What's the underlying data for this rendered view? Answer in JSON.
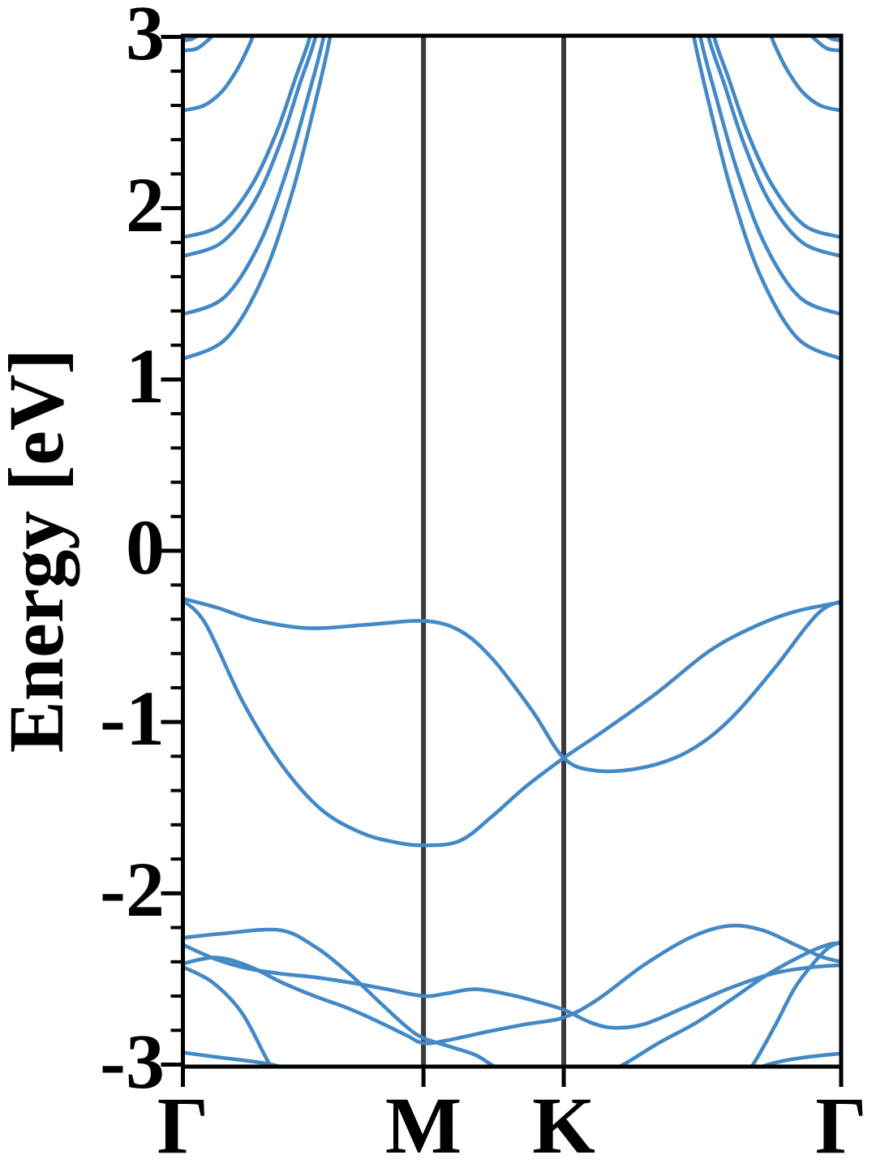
{
  "figure": {
    "ylabel": "Energy [eV]",
    "ytick_labels": [
      {
        "text": "3",
        "energy": 3
      },
      {
        "text": "2",
        "energy": 2
      },
      {
        "text": "1",
        "energy": 1
      },
      {
        "text": "0",
        "energy": 0
      },
      {
        "text": "-1",
        "energy": -1
      },
      {
        "text": "-2",
        "energy": -2
      },
      {
        "text": "-3",
        "energy": -3
      }
    ],
    "xtick_labels": [
      {
        "text": "Γ",
        "k": 0.0
      },
      {
        "text": "M",
        "k": 0.3655
      },
      {
        "text": "K",
        "k": 0.5786
      },
      {
        "text": "Γ",
        "k": 1.0
      }
    ]
  },
  "chart_data": {
    "type": "line",
    "kind": "electronic-band-structure",
    "title": "",
    "xlabel": "",
    "ylabel": "Energy [eV]",
    "ylim": [
      -3,
      3
    ],
    "ytick_major": [
      3,
      2,
      1,
      0,
      -1,
      -2,
      -3
    ],
    "ytick_minor_step": 0.2,
    "grid": false,
    "legend": "none",
    "high_symmetry_points": [
      {
        "label": "Γ",
        "k": 0.0
      },
      {
        "label": "M",
        "k": 0.3655
      },
      {
        "label": "K",
        "k": 0.5786
      },
      {
        "label": "Γ",
        "k": 1.0
      }
    ],
    "separators_k": [
      0.3655,
      0.5786
    ],
    "band_color": "#4389c6",
    "separator_color": "#3a3a3a",
    "axis_color": "#000000",
    "series": [
      {
        "name": "valence-1",
        "mirror": false,
        "points": [
          [
            0,
            -0.28
          ],
          [
            0.05,
            -0.33
          ],
          [
            0.11,
            -0.405
          ],
          [
            0.19,
            -0.452
          ],
          [
            0.28,
            -0.432
          ],
          [
            0.3655,
            -0.41
          ],
          [
            0.42,
            -0.465
          ],
          [
            0.47,
            -0.63
          ],
          [
            0.53,
            -0.93
          ],
          [
            0.5786,
            -1.21
          ],
          [
            0.625,
            -1.283
          ],
          [
            0.69,
            -1.272
          ],
          [
            0.75,
            -1.205
          ],
          [
            0.8,
            -1.09
          ],
          [
            0.845,
            -0.93
          ],
          [
            0.9,
            -0.68
          ],
          [
            0.95,
            -0.43
          ],
          [
            0.975,
            -0.335
          ],
          [
            1,
            -0.295
          ]
        ]
      },
      {
        "name": "valence-2",
        "mirror": false,
        "points": [
          [
            0,
            -0.29
          ],
          [
            0.035,
            -0.43
          ],
          [
            0.092,
            -0.89
          ],
          [
            0.15,
            -1.25
          ],
          [
            0.21,
            -1.51
          ],
          [
            0.27,
            -1.645
          ],
          [
            0.32,
            -1.7
          ],
          [
            0.3655,
            -1.72
          ],
          [
            0.42,
            -1.695
          ],
          [
            0.47,
            -1.55
          ],
          [
            0.52,
            -1.38
          ],
          [
            0.5786,
            -1.21
          ],
          [
            0.64,
            -1.05
          ],
          [
            0.72,
            -0.83
          ],
          [
            0.8,
            -0.585
          ],
          [
            0.87,
            -0.44
          ],
          [
            0.93,
            -0.355
          ],
          [
            1,
            -0.3
          ]
        ]
      },
      {
        "name": "lower-1",
        "mirror": false,
        "points": [
          [
            0,
            -2.26
          ],
          [
            0.06,
            -2.235
          ],
          [
            0.147,
            -2.215
          ],
          [
            0.2,
            -2.31
          ],
          [
            0.25,
            -2.46
          ],
          [
            0.3,
            -2.64
          ],
          [
            0.34,
            -2.78
          ],
          [
            0.3655,
            -2.845
          ],
          [
            0.41,
            -2.9
          ],
          [
            0.445,
            -2.945
          ],
          [
            0.478,
            -3.02
          ],
          [
            0.55,
            -3.15
          ],
          [
            0.61,
            -3.11
          ],
          [
            0.669,
            -3.0
          ],
          [
            0.72,
            -2.88
          ],
          [
            0.78,
            -2.755
          ],
          [
            0.833,
            -2.62
          ],
          [
            0.89,
            -2.47
          ],
          [
            0.945,
            -2.355
          ],
          [
            0.98,
            -2.3
          ],
          [
            1,
            -2.29
          ]
        ]
      },
      {
        "name": "lower-2",
        "mirror": false,
        "points": [
          [
            0,
            -2.3
          ],
          [
            0.05,
            -2.385
          ],
          [
            0.1,
            -2.44
          ],
          [
            0.15,
            -2.47
          ],
          [
            0.2,
            -2.49
          ],
          [
            0.26,
            -2.525
          ],
          [
            0.31,
            -2.56
          ],
          [
            0.3655,
            -2.6
          ],
          [
            0.4,
            -2.585
          ],
          [
            0.445,
            -2.56
          ],
          [
            0.5,
            -2.595
          ],
          [
            0.54,
            -2.635
          ],
          [
            0.5786,
            -2.68
          ],
          [
            0.62,
            -2.755
          ],
          [
            0.655,
            -2.785
          ],
          [
            0.7,
            -2.765
          ],
          [
            0.76,
            -2.67
          ],
          [
            0.833,
            -2.55
          ],
          [
            0.9,
            -2.465
          ],
          [
            0.96,
            -2.43
          ],
          [
            1,
            -2.42
          ]
        ]
      },
      {
        "name": "lower-3",
        "mirror": false,
        "points": [
          [
            0,
            -2.41
          ],
          [
            0.05,
            -2.375
          ],
          [
            0.1,
            -2.425
          ],
          [
            0.15,
            -2.52
          ],
          [
            0.2,
            -2.6
          ],
          [
            0.25,
            -2.67
          ],
          [
            0.3,
            -2.755
          ],
          [
            0.34,
            -2.83
          ],
          [
            0.3655,
            -2.875
          ],
          [
            0.4,
            -2.86
          ],
          [
            0.46,
            -2.81
          ],
          [
            0.52,
            -2.765
          ],
          [
            0.5786,
            -2.725
          ],
          [
            0.63,
            -2.62
          ],
          [
            0.7,
            -2.42
          ],
          [
            0.77,
            -2.26
          ],
          [
            0.829,
            -2.19
          ],
          [
            0.88,
            -2.215
          ],
          [
            0.93,
            -2.3
          ],
          [
            0.97,
            -2.37
          ],
          [
            1,
            -2.4
          ]
        ]
      },
      {
        "name": "lower-4",
        "mirror": false,
        "points": [
          [
            0,
            -2.43
          ],
          [
            0.045,
            -2.52
          ],
          [
            0.09,
            -2.7
          ],
          [
            0.132,
            -3.0
          ],
          [
            0.17,
            -3.22
          ],
          [
            0.45,
            -3.3
          ],
          [
            0.8,
            -3.25
          ],
          [
            0.83,
            -3.18
          ],
          [
            0.866,
            -3.0
          ],
          [
            0.9,
            -2.77
          ],
          [
            0.93,
            -2.55
          ],
          [
            0.962,
            -2.39
          ],
          [
            0.982,
            -2.315
          ],
          [
            1,
            -2.285
          ]
        ]
      },
      {
        "name": "lower-5",
        "mirror": false,
        "points": [
          [
            0,
            -2.93
          ],
          [
            0.06,
            -2.96
          ],
          [
            0.12,
            -2.99
          ],
          [
            0.163,
            -3.03
          ],
          [
            0.23,
            -3.13
          ],
          [
            0.5,
            -3.2
          ],
          [
            0.8,
            -3.11
          ],
          [
            0.889,
            -3.0
          ],
          [
            0.94,
            -2.96
          ],
          [
            1,
            -2.935
          ]
        ]
      },
      {
        "name": "conduction-1",
        "mirror": true,
        "points": [
          [
            0,
            1.12
          ],
          [
            0.066,
            1.24
          ],
          [
            0.122,
            1.6
          ],
          [
            0.166,
            2.09
          ],
          [
            0.2,
            2.6
          ],
          [
            0.2237,
            3.0
          ],
          [
            0.244,
            3.46
          ]
        ]
      },
      {
        "name": "conduction-2",
        "mirror": true,
        "points": [
          [
            0,
            1.38
          ],
          [
            0.063,
            1.48
          ],
          [
            0.116,
            1.79
          ],
          [
            0.158,
            2.22
          ],
          [
            0.19,
            2.65
          ],
          [
            0.2138,
            3.0
          ],
          [
            0.232,
            3.42
          ]
        ]
      },
      {
        "name": "conduction-3",
        "mirror": true,
        "points": [
          [
            0,
            1.72
          ],
          [
            0.059,
            1.8
          ],
          [
            0.109,
            2.04
          ],
          [
            0.148,
            2.38
          ],
          [
            0.178,
            2.73
          ],
          [
            0.2015,
            3.0
          ],
          [
            0.219,
            3.33
          ]
        ]
      },
      {
        "name": "conduction-4",
        "mirror": true,
        "points": [
          [
            0,
            1.83
          ],
          [
            0.056,
            1.9
          ],
          [
            0.104,
            2.13
          ],
          [
            0.142,
            2.44
          ],
          [
            0.171,
            2.76
          ],
          [
            0.1929,
            3.0
          ],
          [
            0.21,
            3.31
          ]
        ]
      },
      {
        "name": "conduction-5",
        "mirror": true,
        "points": [
          [
            0,
            2.57
          ],
          [
            0.032,
            2.6
          ],
          [
            0.059,
            2.68
          ],
          [
            0.081,
            2.8
          ],
          [
            0.097,
            2.92
          ],
          [
            0.108,
            3.02
          ],
          [
            0.118,
            3.14
          ]
        ]
      },
      {
        "name": "conduction-6",
        "mirror": true,
        "points": [
          [
            0,
            2.92
          ],
          [
            0.02,
            2.93
          ],
          [
            0.035,
            2.97
          ],
          [
            0.0474,
            3.02
          ],
          [
            0.06,
            3.12
          ]
        ]
      },
      {
        "name": "conduction-7",
        "mirror": true,
        "points": [
          [
            0,
            2.98
          ],
          [
            0.015,
            2.99
          ],
          [
            0.027,
            3.03
          ],
          [
            0.0364,
            3.12
          ]
        ]
      }
    ]
  }
}
